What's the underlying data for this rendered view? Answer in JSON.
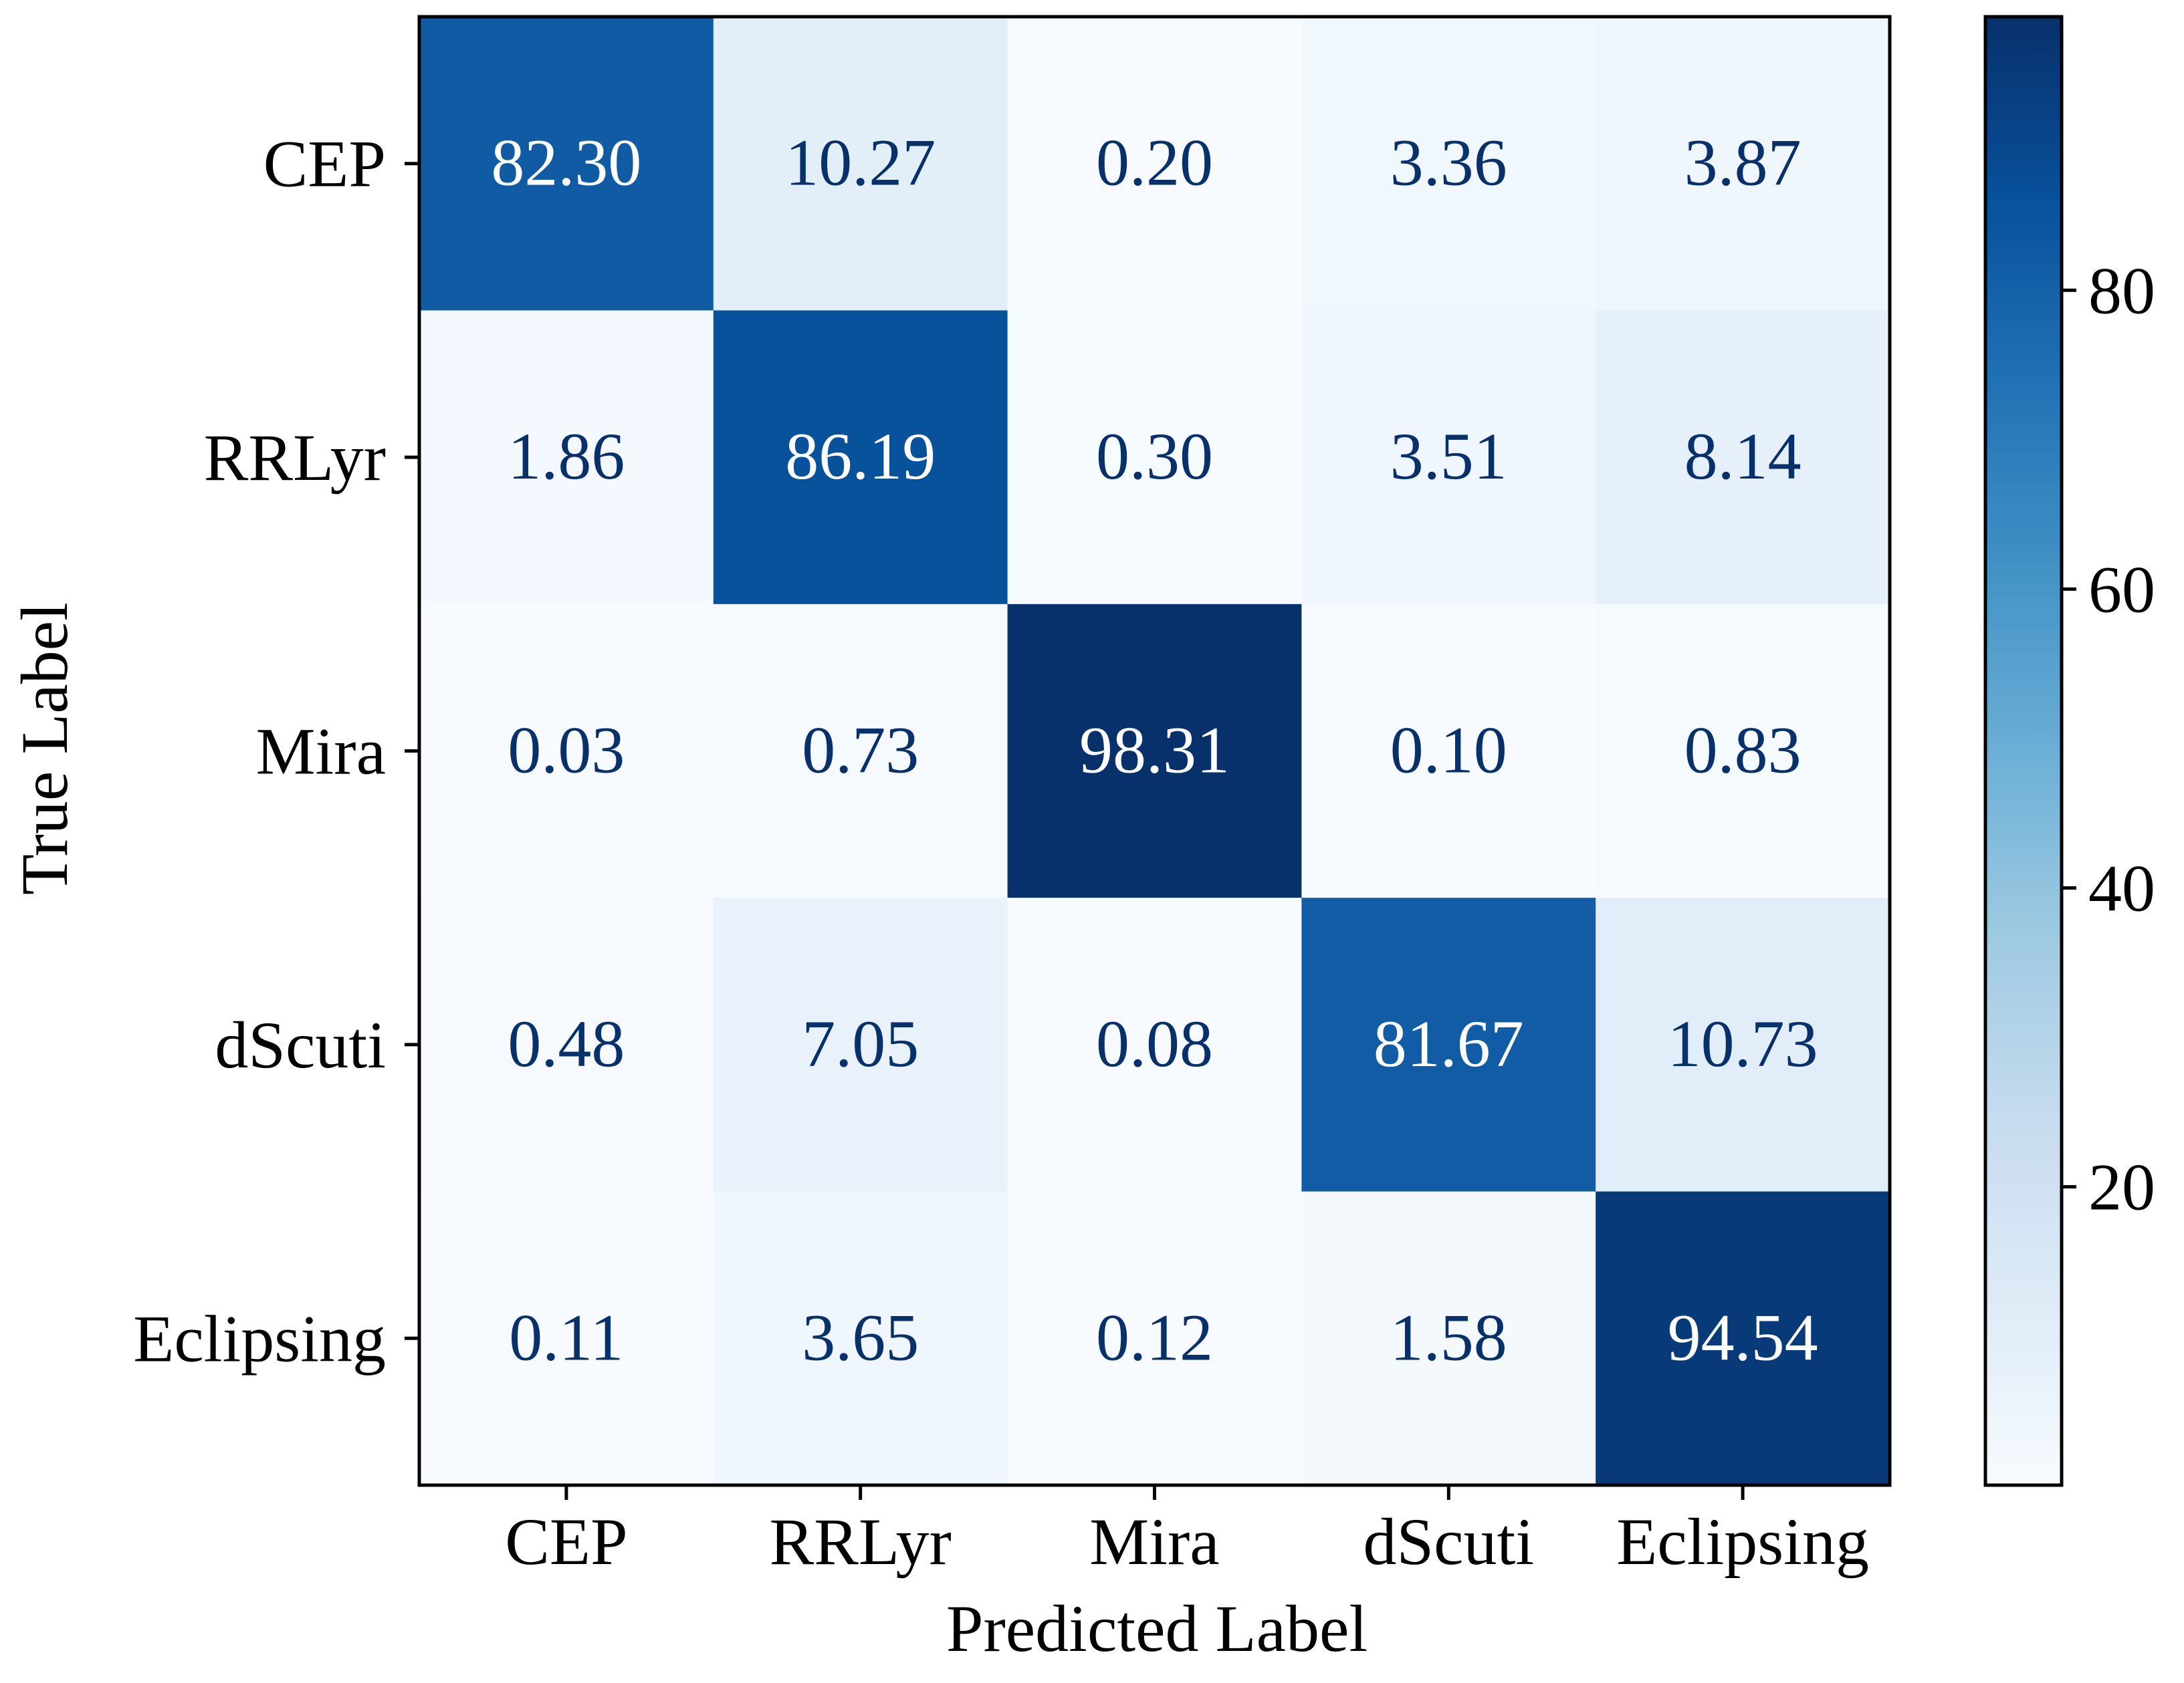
{
  "chart_data": {
    "type": "heatmap",
    "title": "",
    "xlabel": "Predicted Label",
    "ylabel": "True Label",
    "x_categories": [
      "CEP",
      "RRLyr",
      "Mira",
      "dScuti",
      "Eclipsing"
    ],
    "y_categories": [
      "CEP",
      "RRLyr",
      "Mira",
      "dScuti",
      "Eclipsing"
    ],
    "values": [
      [
        82.3,
        10.27,
        0.2,
        3.36,
        3.87
      ],
      [
        1.86,
        86.19,
        0.3,
        3.51,
        8.14
      ],
      [
        0.03,
        0.73,
        98.31,
        0.1,
        0.83
      ],
      [
        0.48,
        7.05,
        0.08,
        81.67,
        10.73
      ],
      [
        0.11,
        3.65,
        0.12,
        1.58,
        94.54
      ]
    ],
    "value_labels": [
      [
        "82.30",
        "10.27",
        "0.20",
        "3.36",
        "3.87"
      ],
      [
        "1.86",
        "86.19",
        "0.30",
        "3.51",
        "8.14"
      ],
      [
        "0.03",
        "0.73",
        "98.31",
        "0.10",
        "0.83"
      ],
      [
        "0.48",
        "7.05",
        "0.08",
        "81.67",
        "10.73"
      ],
      [
        "0.11",
        "3.65",
        "0.12",
        "1.58",
        "94.54"
      ]
    ],
    "colormap": "Blues",
    "colorbar": {
      "range": [
        0.03,
        98.31
      ],
      "ticks": [
        20,
        40,
        60,
        80
      ],
      "tick_labels": [
        "20",
        "40",
        "60",
        "80"
      ]
    },
    "text_color_light": "#ffffff",
    "text_color_dark": "#08306b"
  }
}
